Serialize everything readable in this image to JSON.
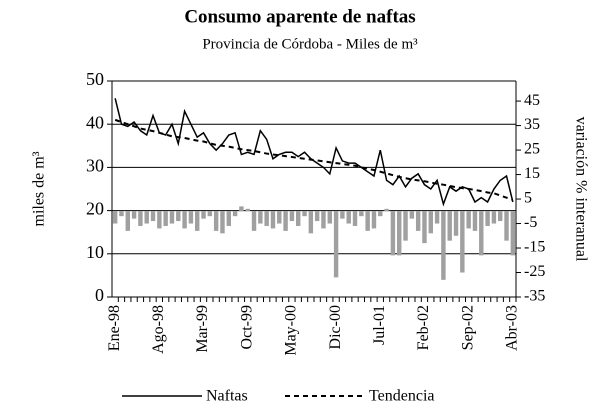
{
  "chart_data": {
    "type": "combo",
    "title": "Consumo aparente de naftas",
    "subtitle": "Provincia de Córdoba - Miles de m³",
    "y_label": "miles de m³",
    "y2_label": "variación % interanual",
    "categories": [
      "Ene-98",
      null,
      null,
      null,
      null,
      null,
      null,
      "Ago-98",
      null,
      null,
      null,
      null,
      null,
      null,
      "Mar-99",
      null,
      null,
      null,
      null,
      null,
      null,
      "Oct-99",
      null,
      null,
      null,
      null,
      null,
      null,
      "May-00",
      null,
      null,
      null,
      null,
      null,
      null,
      "Dic-00",
      null,
      null,
      null,
      null,
      null,
      null,
      "Jul-01",
      null,
      null,
      null,
      null,
      null,
      null,
      "Feb-02",
      null,
      null,
      null,
      null,
      null,
      null,
      "Sep-02",
      null,
      null,
      null,
      null,
      null,
      null,
      "Abr-03"
    ],
    "series": [
      {
        "name": "Naftas",
        "color": "#000000",
        "style": "solid",
        "values": [
          46,
          40,
          39.5,
          40.5,
          38.5,
          37.5,
          42,
          38,
          37.5,
          40,
          35.5,
          43,
          40,
          37,
          38,
          35.5,
          34,
          35.5,
          37.5,
          38,
          33,
          33.5,
          33,
          38.5,
          36.5,
          32,
          33,
          33.5,
          33.5,
          32.5,
          33.5,
          32,
          31,
          30,
          28.5,
          34.5,
          31.5,
          31,
          31,
          30,
          29,
          28,
          34,
          27,
          26,
          28,
          25.5,
          27.5,
          28.5,
          26,
          25,
          27,
          21.5,
          25.5,
          24.5,
          25.5,
          25,
          22,
          23,
          22,
          25,
          27,
          28,
          22
        ]
      },
      {
        "name": "Tendencia",
        "color": "#000000",
        "style": "dashed",
        "values": [
          41,
          40.5,
          40,
          39.5,
          39,
          38.7,
          38.4,
          38,
          37.6,
          37.2,
          37,
          36.8,
          36.5,
          36.2,
          36,
          35.6,
          35.2,
          35,
          34.8,
          34.5,
          34.2,
          34,
          33.8,
          33.5,
          33.2,
          33,
          32.8,
          32.6,
          32.4,
          32.2,
          32,
          31.8,
          31.6,
          31.4,
          31.2,
          31,
          30.8,
          30.6,
          30.4,
          30,
          29.7,
          29.4,
          29,
          28.6,
          28.2,
          27.8,
          27.5,
          27.2,
          27,
          26.8,
          26.5,
          26.2,
          26,
          25.7,
          25.4,
          25.2,
          25,
          24.8,
          24.5,
          24.2,
          24,
          23.5,
          23,
          22.5
        ]
      },
      {
        "name": "variación % interanual",
        "color": "#a0a0a0",
        "axis": "y2",
        "values": [
          -5,
          -2,
          -8,
          -3,
          -6,
          -5,
          -4,
          -7,
          -6,
          -5,
          -4,
          -7,
          -5,
          -8,
          -3,
          -2,
          -8,
          -9,
          -6,
          -2,
          2,
          1,
          -8,
          -5,
          -6,
          -7,
          -5,
          -8,
          -4,
          -6,
          -2,
          -9,
          -4,
          -7,
          -5,
          -27,
          -3,
          -5,
          -6,
          -2,
          -8,
          -7,
          -2,
          1,
          -18,
          -18,
          -12,
          -3,
          -8,
          -13,
          -9,
          -5,
          -28,
          -12,
          -10,
          -25,
          -7,
          -8,
          -18,
          -6,
          -5,
          -4,
          -12,
          -18
        ]
      }
    ],
    "ylim": [
      0,
      50
    ],
    "yticks": [
      0,
      10,
      20,
      30,
      40,
      50
    ],
    "y2lim": [
      -35,
      53.2
    ],
    "y2ticks": [
      -35,
      -25,
      -15,
      -5,
      5,
      15,
      25,
      35,
      45
    ],
    "grid": true,
    "legend": "bottom"
  }
}
